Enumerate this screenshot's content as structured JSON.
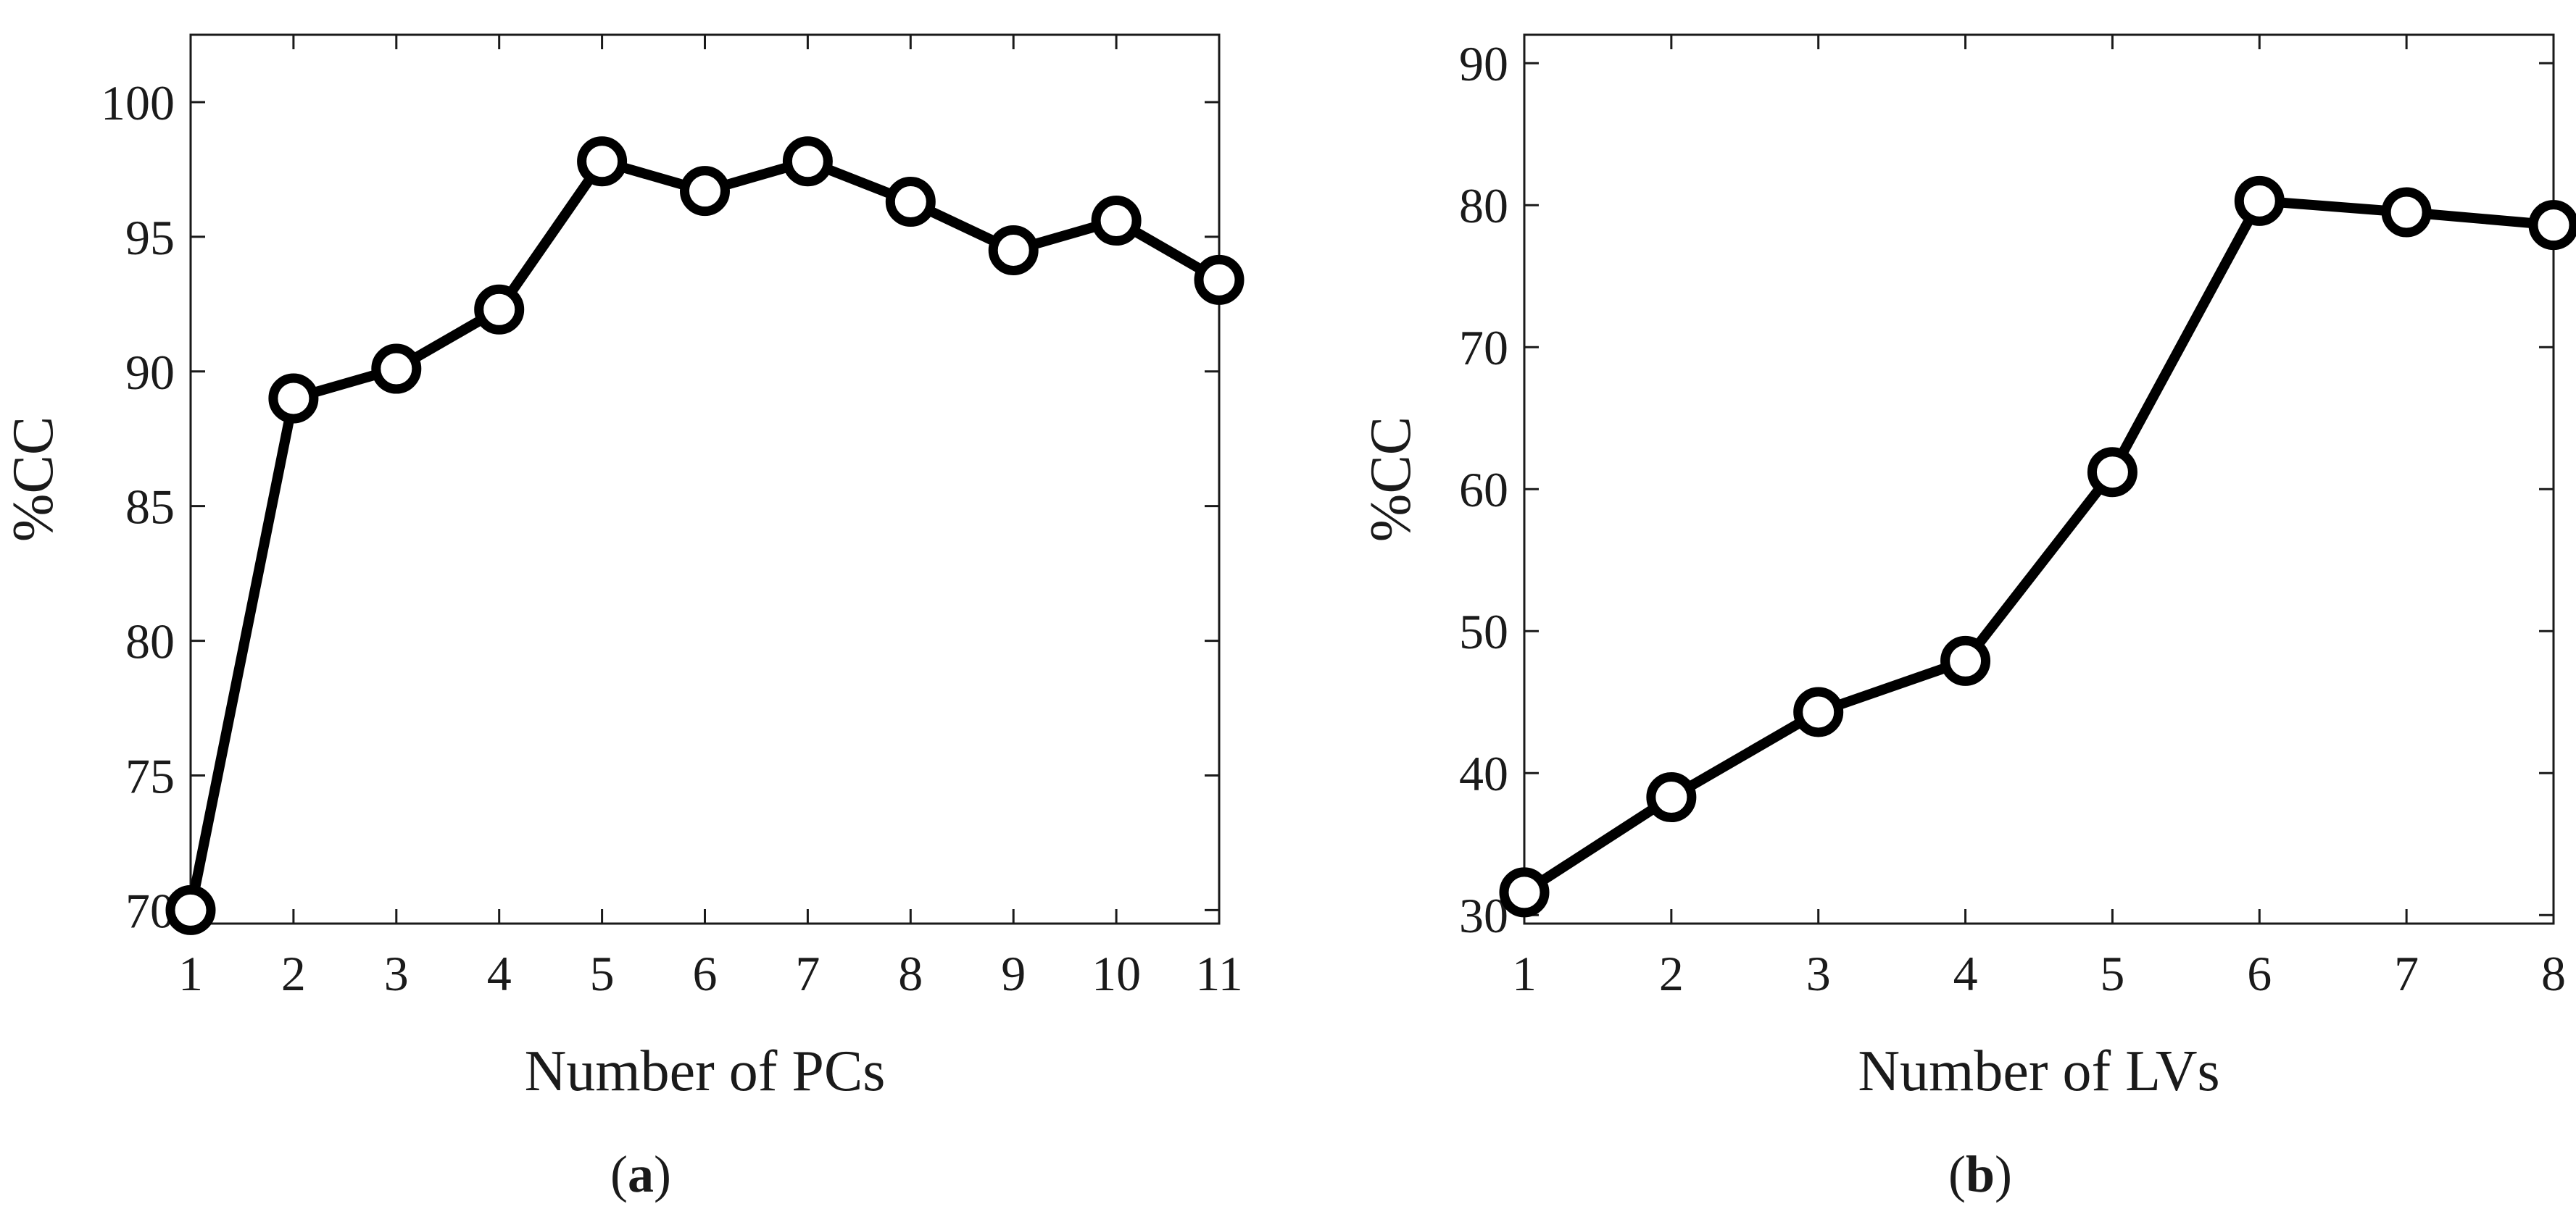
{
  "colors": {
    "line": "#000000",
    "axes": "#1a1a1a",
    "background": "#ffffff"
  },
  "chart_data": [
    {
      "type": "line",
      "panel_label": "a",
      "xlabel": "Number of PCs",
      "ylabel": "%CC",
      "xlim": [
        1,
        11
      ],
      "ylim": [
        69.5,
        102.5
      ],
      "xticks": [
        1,
        2,
        3,
        4,
        5,
        6,
        7,
        8,
        9,
        10,
        11
      ],
      "yticks": [
        70,
        75,
        80,
        85,
        90,
        95,
        100
      ],
      "grid": false,
      "marker": "circle",
      "series": [
        {
          "x": [
            1,
            2,
            3,
            4,
            5,
            6,
            7,
            8,
            9,
            10,
            11
          ],
          "values": [
            70.0,
            89.0,
            90.1,
            92.3,
            97.8,
            96.7,
            97.8,
            96.3,
            94.5,
            95.6,
            93.4
          ]
        }
      ]
    },
    {
      "type": "line",
      "panel_label": "b",
      "xlabel": "Number of LVs",
      "ylabel": "%CC",
      "xlim": [
        1,
        8
      ],
      "ylim": [
        29.4,
        92
      ],
      "xticks": [
        1,
        2,
        3,
        4,
        5,
        6,
        7,
        8
      ],
      "yticks": [
        30,
        40,
        50,
        60,
        70,
        80,
        90
      ],
      "grid": false,
      "marker": "circle",
      "series": [
        {
          "x": [
            1,
            2,
            3,
            4,
            5,
            6,
            7,
            8
          ],
          "values": [
            31.6,
            38.3,
            44.3,
            47.9,
            61.2,
            80.3,
            79.5,
            78.6
          ]
        }
      ]
    }
  ]
}
